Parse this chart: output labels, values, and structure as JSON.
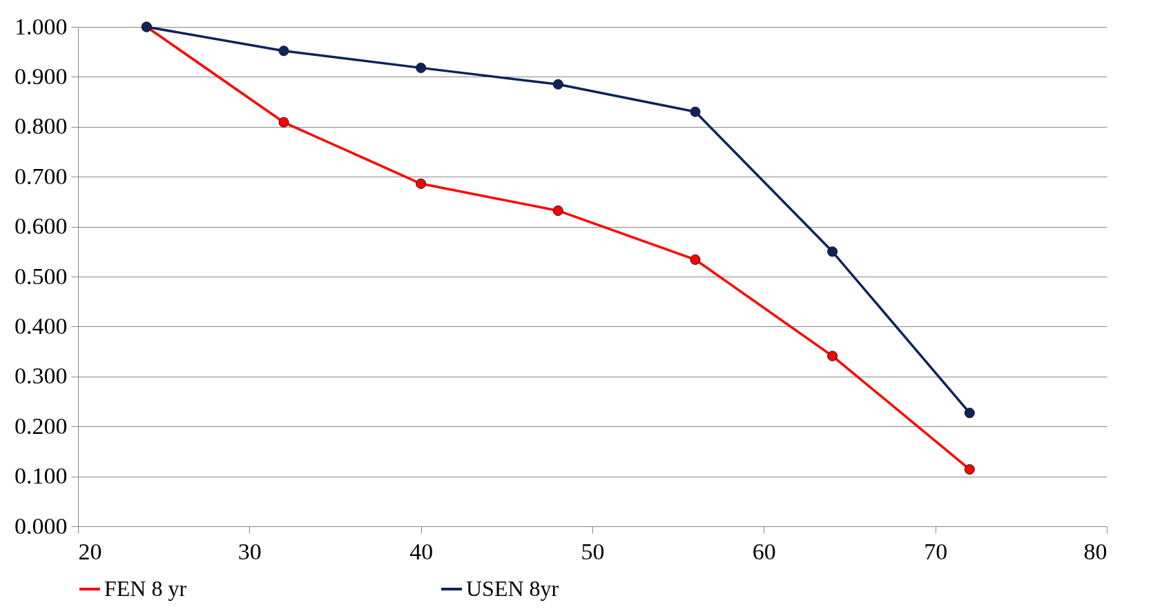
{
  "chart_data": {
    "type": "line",
    "x": [
      24,
      32,
      40,
      48,
      56,
      64,
      72
    ],
    "series": [
      {
        "name": "FEN 8 yr",
        "color": "#ff0000",
        "values": [
          1.0,
          0.809,
          0.686,
          0.632,
          0.534,
          0.341,
          0.114
        ]
      },
      {
        "name": "USEN 8yr",
        "color": "#0e2358",
        "values": [
          1.0,
          0.952,
          0.918,
          0.885,
          0.83,
          0.55,
          0.227
        ]
      }
    ],
    "xlim": [
      20,
      80
    ],
    "xticks": [
      20,
      30,
      40,
      50,
      60,
      70,
      80
    ],
    "ylim": [
      0,
      1
    ],
    "yticks": [
      {
        "value": 0,
        "label": "0.000"
      },
      {
        "value": 0.1,
        "label": "0.100"
      },
      {
        "value": 0.2,
        "label": "0.200"
      },
      {
        "value": 0.3,
        "label": "0.300"
      },
      {
        "value": 0.4,
        "label": "0.400"
      },
      {
        "value": 0.5,
        "label": "0.500"
      },
      {
        "value": 0.6,
        "label": "0.600"
      },
      {
        "value": 0.7,
        "label": "0.700"
      },
      {
        "value": 0.8,
        "label": "0.800"
      },
      {
        "value": 0.9,
        "label": "0.900"
      },
      {
        "value": 1.0,
        "label": "1.000"
      }
    ],
    "grid": "y",
    "legend": "bottom",
    "marker": "circle",
    "line_style": "solid"
  }
}
